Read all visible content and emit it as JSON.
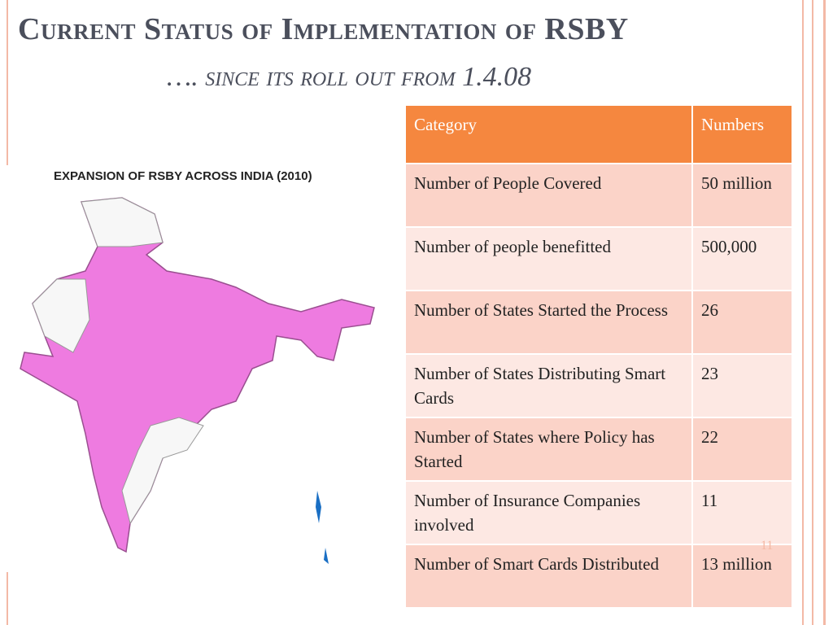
{
  "header": {
    "title": "Current Status of Implementation of RSBY",
    "subtitle": "…. since its roll out from 1.4.08"
  },
  "map": {
    "caption": "EXPANSION OF RSBY ACROSS INDIA (2010)"
  },
  "table": {
    "columns": [
      "Category",
      "Numbers"
    ],
    "rows": [
      [
        "Number of People Covered",
        "50 million"
      ],
      [
        "Number of people benefitted",
        "500,000"
      ],
      [
        "Number of States Started the Process",
        "26"
      ],
      [
        "Number of States Distributing Smart Cards",
        "23"
      ],
      [
        "Number of States where Policy has Started",
        "22"
      ],
      [
        "Number of Insurance Companies involved",
        "11"
      ],
      [
        "Number of Smart Cards Distributed",
        "13 million"
      ]
    ]
  },
  "page_number": "11"
}
